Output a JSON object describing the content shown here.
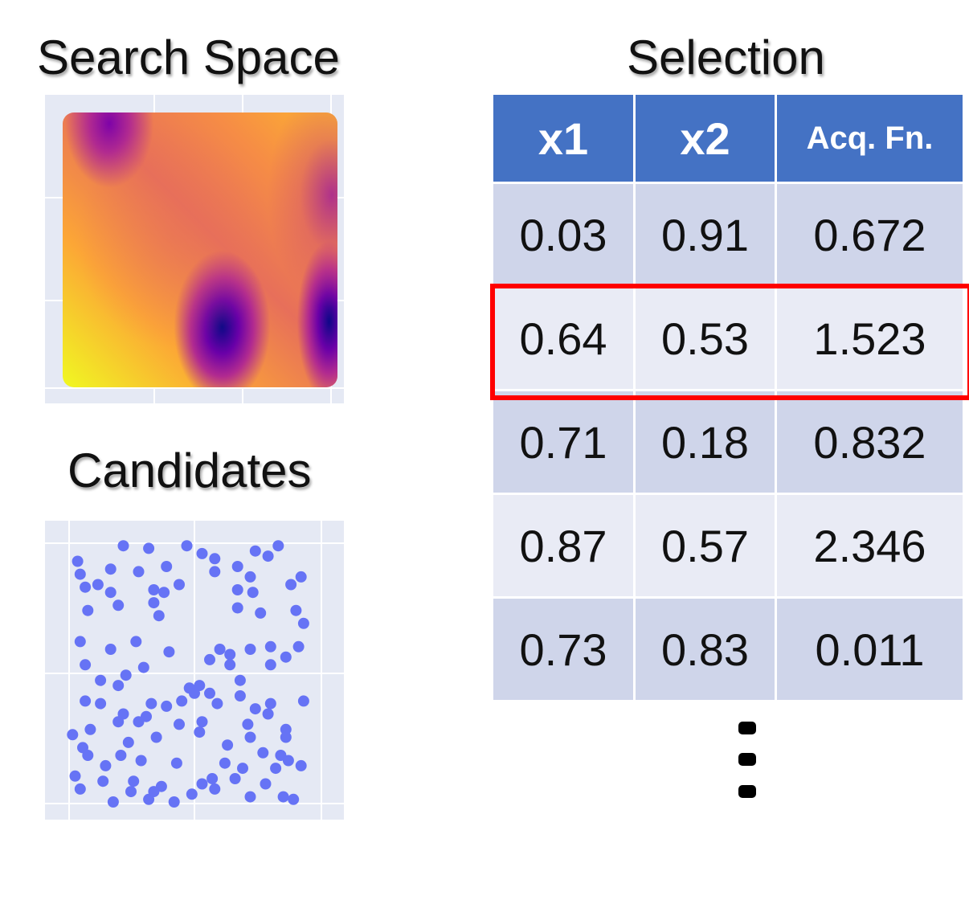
{
  "titles": {
    "search_space": "Search Space",
    "candidates": "Candidates",
    "selection": "Selection"
  },
  "table": {
    "columns": [
      "x1",
      "x2",
      "Acq. Fn."
    ],
    "rows": [
      [
        "0.03",
        "0.91",
        "0.672"
      ],
      [
        "0.64",
        "0.53",
        "1.523"
      ],
      [
        "0.71",
        "0.18",
        "0.832"
      ],
      [
        "0.87",
        "0.57",
        "2.346"
      ],
      [
        "0.73",
        "0.83",
        "0.011"
      ]
    ],
    "highlighted_row_index": 1,
    "more_rows_indicator": "ellipsis-vertical"
  },
  "colors": {
    "header_bg": "#4472c4",
    "row_dark": "#cfd5ea",
    "row_light": "#e9ebf5",
    "highlight": "#ff0000",
    "plot_bg": "#e5e9f4",
    "candidate_point": "#6673f5",
    "heatmap_colorscale": "plasma"
  },
  "chart_data": [
    {
      "type": "heatmap",
      "name": "search-space",
      "colorscale": "plasma",
      "x_range": [
        0,
        1
      ],
      "y_range": [
        0,
        1
      ],
      "low_value_regions": [
        {
          "x": 0.15,
          "y": 0.95
        },
        {
          "x": 0.54,
          "y": 0.27
        },
        {
          "x": 0.95,
          "y": 0.28
        }
      ],
      "grid": true
    },
    {
      "type": "scatter",
      "name": "candidates",
      "x_range": [
        0,
        1
      ],
      "y_range": [
        0,
        1
      ],
      "grid": true,
      "points": [
        [
          0.22,
          0.99
        ],
        [
          0.32,
          0.98
        ],
        [
          0.47,
          0.99
        ],
        [
          0.53,
          0.96
        ],
        [
          0.58,
          0.94
        ],
        [
          0.74,
          0.97
        ],
        [
          0.79,
          0.95
        ],
        [
          0.83,
          0.99
        ],
        [
          0.04,
          0.93
        ],
        [
          0.05,
          0.88
        ],
        [
          0.17,
          0.9
        ],
        [
          0.28,
          0.89
        ],
        [
          0.39,
          0.91
        ],
        [
          0.58,
          0.89
        ],
        [
          0.67,
          0.91
        ],
        [
          0.72,
          0.87
        ],
        [
          0.92,
          0.87
        ],
        [
          0.07,
          0.83
        ],
        [
          0.12,
          0.84
        ],
        [
          0.17,
          0.81
        ],
        [
          0.34,
          0.82
        ],
        [
          0.38,
          0.81
        ],
        [
          0.44,
          0.84
        ],
        [
          0.67,
          0.82
        ],
        [
          0.73,
          0.81
        ],
        [
          0.88,
          0.84
        ],
        [
          0.08,
          0.74
        ],
        [
          0.2,
          0.76
        ],
        [
          0.34,
          0.77
        ],
        [
          0.36,
          0.72
        ],
        [
          0.67,
          0.75
        ],
        [
          0.76,
          0.73
        ],
        [
          0.9,
          0.74
        ],
        [
          0.93,
          0.69
        ],
        [
          0.05,
          0.62
        ],
        [
          0.17,
          0.59
        ],
        [
          0.27,
          0.62
        ],
        [
          0.4,
          0.58
        ],
        [
          0.56,
          0.55
        ],
        [
          0.6,
          0.59
        ],
        [
          0.64,
          0.57
        ],
        [
          0.72,
          0.59
        ],
        [
          0.8,
          0.6
        ],
        [
          0.86,
          0.56
        ],
        [
          0.91,
          0.6
        ],
        [
          0.07,
          0.53
        ],
        [
          0.23,
          0.49
        ],
        [
          0.3,
          0.52
        ],
        [
          0.48,
          0.44
        ],
        [
          0.52,
          0.45
        ],
        [
          0.56,
          0.42
        ],
        [
          0.64,
          0.53
        ],
        [
          0.68,
          0.47
        ],
        [
          0.8,
          0.53
        ],
        [
          0.13,
          0.47
        ],
        [
          0.2,
          0.45
        ],
        [
          0.45,
          0.39
        ],
        [
          0.5,
          0.42
        ],
        [
          0.59,
          0.38
        ],
        [
          0.68,
          0.41
        ],
        [
          0.74,
          0.36
        ],
        [
          0.8,
          0.38
        ],
        [
          0.07,
          0.39
        ],
        [
          0.13,
          0.38
        ],
        [
          0.33,
          0.38
        ],
        [
          0.39,
          0.37
        ],
        [
          0.44,
          0.3
        ],
        [
          0.22,
          0.34
        ],
        [
          0.31,
          0.33
        ],
        [
          0.53,
          0.31
        ],
        [
          0.71,
          0.3
        ],
        [
          0.79,
          0.34
        ],
        [
          0.86,
          0.28
        ],
        [
          0.93,
          0.39
        ],
        [
          0.02,
          0.26
        ],
        [
          0.09,
          0.28
        ],
        [
          0.2,
          0.31
        ],
        [
          0.28,
          0.31
        ],
        [
          0.72,
          0.25
        ],
        [
          0.86,
          0.25
        ],
        [
          0.24,
          0.23
        ],
        [
          0.35,
          0.25
        ],
        [
          0.52,
          0.27
        ],
        [
          0.63,
          0.22
        ],
        [
          0.77,
          0.19
        ],
        [
          0.84,
          0.18
        ],
        [
          0.06,
          0.21
        ],
        [
          0.08,
          0.18
        ],
        [
          0.15,
          0.14
        ],
        [
          0.29,
          0.16
        ],
        [
          0.43,
          0.15
        ],
        [
          0.62,
          0.15
        ],
        [
          0.69,
          0.13
        ],
        [
          0.82,
          0.13
        ],
        [
          0.87,
          0.16
        ],
        [
          0.92,
          0.14
        ],
        [
          0.03,
          0.1
        ],
        [
          0.14,
          0.08
        ],
        [
          0.26,
          0.08
        ],
        [
          0.37,
          0.06
        ],
        [
          0.53,
          0.07
        ],
        [
          0.58,
          0.05
        ],
        [
          0.66,
          0.09
        ],
        [
          0.78,
          0.07
        ],
        [
          0.05,
          0.05
        ],
        [
          0.25,
          0.04
        ],
        [
          0.32,
          0.01
        ],
        [
          0.42,
          0.0
        ],
        [
          0.49,
          0.03
        ],
        [
          0.72,
          0.02
        ],
        [
          0.85,
          0.02
        ],
        [
          0.89,
          0.01
        ],
        [
          0.18,
          0.0
        ],
        [
          0.34,
          0.04
        ],
        [
          0.57,
          0.09
        ],
        [
          0.21,
          0.18
        ]
      ]
    }
  ]
}
